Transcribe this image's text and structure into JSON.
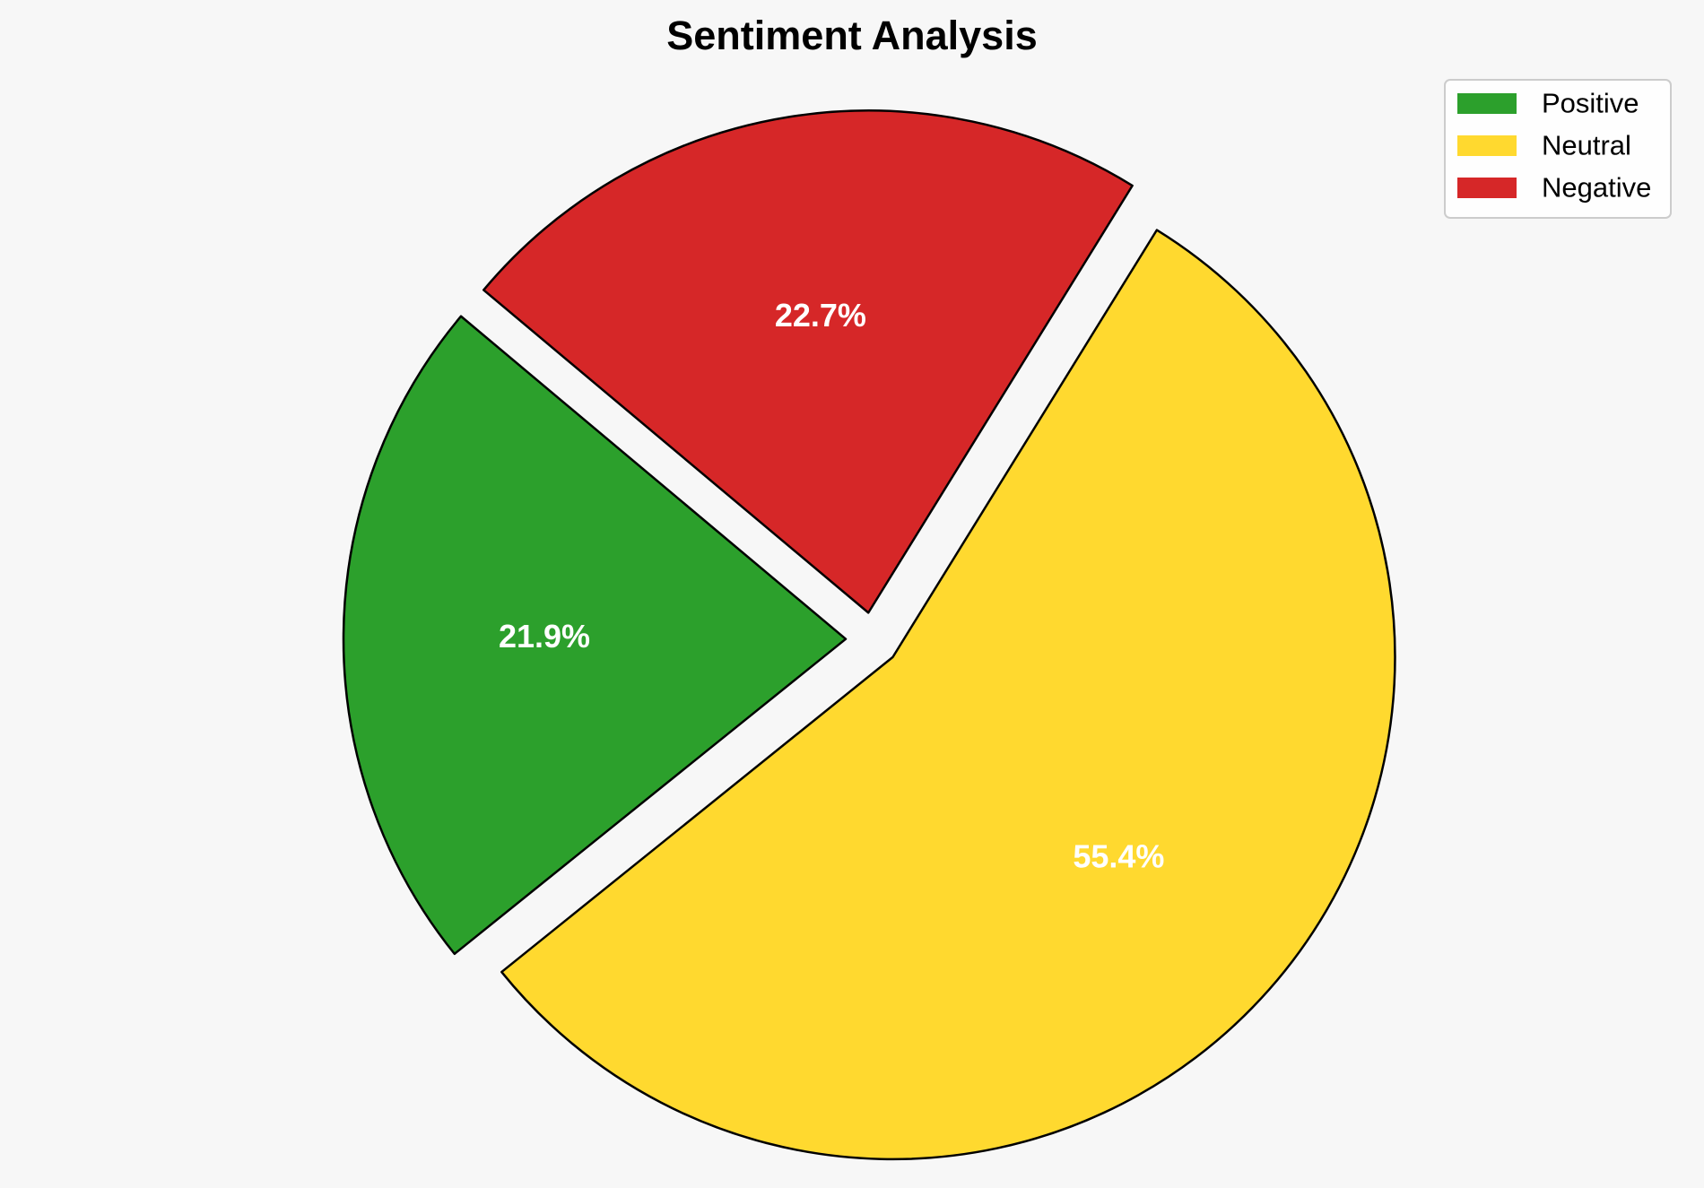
{
  "chart_data": {
    "type": "pie",
    "title": "Sentiment Analysis",
    "categories": [
      "Positive",
      "Neutral",
      "Negative"
    ],
    "values": [
      21.9,
      55.4,
      22.7
    ],
    "labels": [
      "21.9%",
      "55.4%",
      "22.7%"
    ],
    "colors": [
      "#2ca02c",
      "#ffd92f",
      "#d62728"
    ],
    "edge_color": "#000000",
    "exploded": true,
    "legend_position": "top-right"
  }
}
